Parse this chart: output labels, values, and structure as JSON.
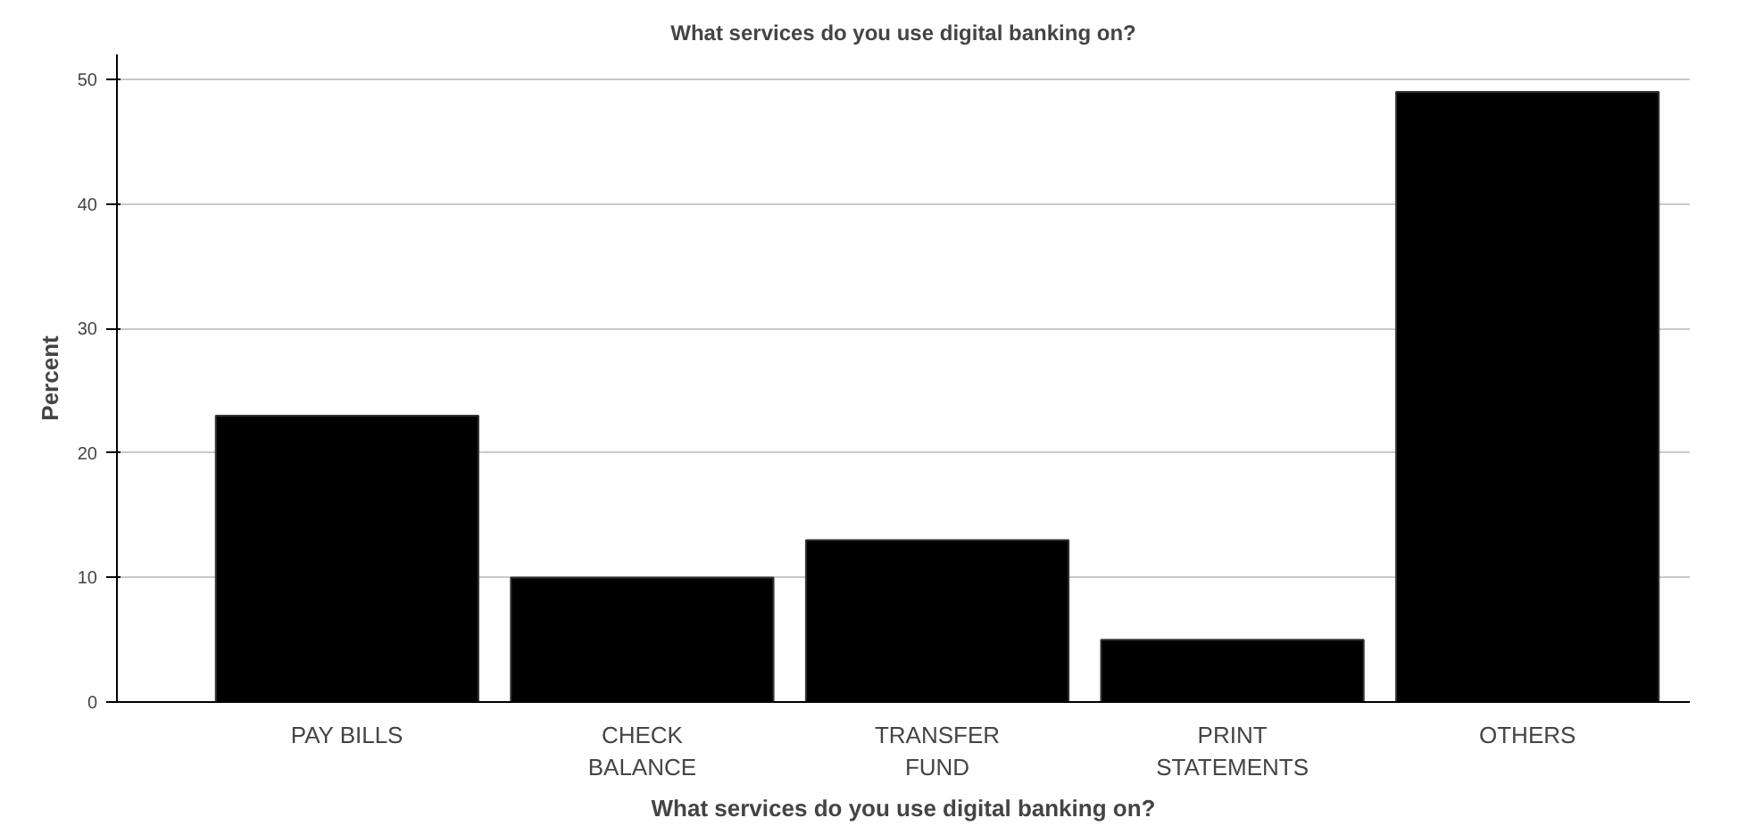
{
  "chart_data": {
    "type": "bar",
    "title": "What services do you use digital banking on?",
    "xlabel": "What services do you use digital banking on?",
    "ylabel": "Percent",
    "categories": [
      "PAY BILLS",
      "CHECK\nBALANCE",
      "TRANSFER\nFUND",
      "PRINT\nSTATEMENTS",
      "OTHERS"
    ],
    "values": [
      23,
      10,
      13,
      5,
      49
    ],
    "color": "#000000",
    "ylim": [
      0,
      52
    ],
    "yticks": [
      0,
      10,
      20,
      30,
      40,
      50
    ],
    "grid": "y"
  }
}
